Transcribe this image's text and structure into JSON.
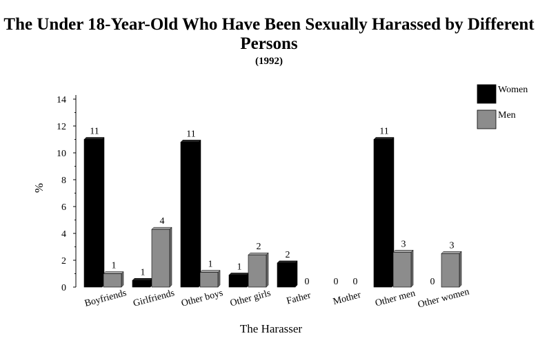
{
  "chart_data": {
    "type": "bar",
    "title": "The Under 18-Year-Old Who Have Been Sexually Harassed by Different Persons",
    "subtitle": "(1992)",
    "xlabel": "The Harasser",
    "ylabel": "%",
    "ylim": [
      0,
      14
    ],
    "yticks": [
      0,
      2,
      4,
      6,
      8,
      10,
      12,
      14
    ],
    "grid": false,
    "legend_position": "top-right",
    "categories": [
      "Boyfriends",
      "Girlfriends",
      "Other boys",
      "Other girls",
      "Father",
      "Mother",
      "Other men",
      "Other women"
    ],
    "series": [
      {
        "name": "Women",
        "color": "#000000",
        "values": [
          11.0,
          0.5,
          10.8,
          0.9,
          1.8,
          0,
          11.0,
          0
        ],
        "labels": [
          "11",
          "1",
          "11",
          "1",
          "2",
          "0",
          "11",
          "0"
        ]
      },
      {
        "name": "Men",
        "color": "#8c8c8c",
        "values": [
          1.0,
          4.3,
          1.1,
          2.4,
          0,
          0,
          2.6,
          2.5
        ],
        "labels": [
          "1",
          "4",
          "1",
          "2",
          "0",
          "0",
          "3",
          "3"
        ]
      }
    ]
  }
}
